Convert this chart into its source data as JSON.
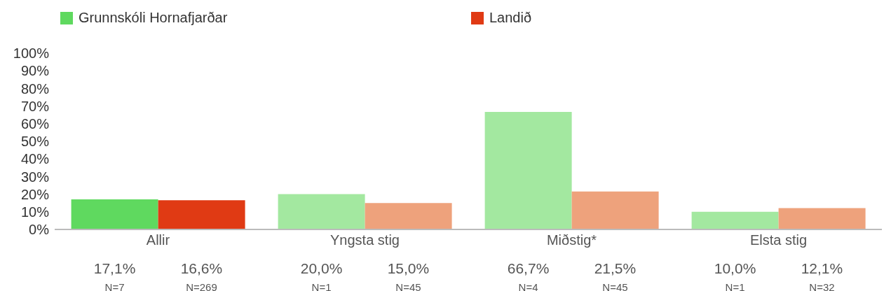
{
  "chart_data": {
    "type": "bar",
    "categories": [
      "Allir",
      "Yngsta stig",
      "Miðstig*",
      "Elsta stig"
    ],
    "series": [
      {
        "name": "Grunnskóli Hornafjarðar",
        "color": "#5fd95f",
        "colors": [
          "#5fd95f",
          "#a3e8a0",
          "#a3e8a0",
          "#a3e8a0"
        ],
        "values": [
          17.1,
          20.0,
          66.7,
          10.0
        ],
        "value_labels": [
          "17,1%",
          "20,0%",
          "66,7%",
          "10,0%"
        ]
      },
      {
        "name": "Landið",
        "color": "#e03a14",
        "colors": [
          "#e03a14",
          "#eea27c",
          "#eea27c",
          "#eea27c"
        ],
        "values": [
          16.6,
          15.0,
          21.5,
          12.1
        ],
        "value_labels": [
          "16,6%",
          "15,0%",
          "21,5%",
          "12,1%"
        ]
      }
    ],
    "annotations": [
      "N=7",
      "N=269",
      "N=1",
      "N=45",
      "N=4",
      "N=45",
      "N=1",
      "N=32"
    ],
    "ylim": [
      0,
      100
    ],
    "yticks": [
      {
        "value": 0,
        "label": "0%"
      },
      {
        "value": 10,
        "label": "10%"
      },
      {
        "value": 20,
        "label": "20%"
      },
      {
        "value": 30,
        "label": "30%"
      },
      {
        "value": 40,
        "label": "40%"
      },
      {
        "value": 50,
        "label": "50%"
      },
      {
        "value": 60,
        "label": "60%"
      },
      {
        "value": 70,
        "label": "70%"
      },
      {
        "value": 80,
        "label": "80%"
      },
      {
        "value": 90,
        "label": "90%"
      },
      {
        "value": 100,
        "label": "100%"
      }
    ],
    "grid": false,
    "legend": "top left"
  }
}
